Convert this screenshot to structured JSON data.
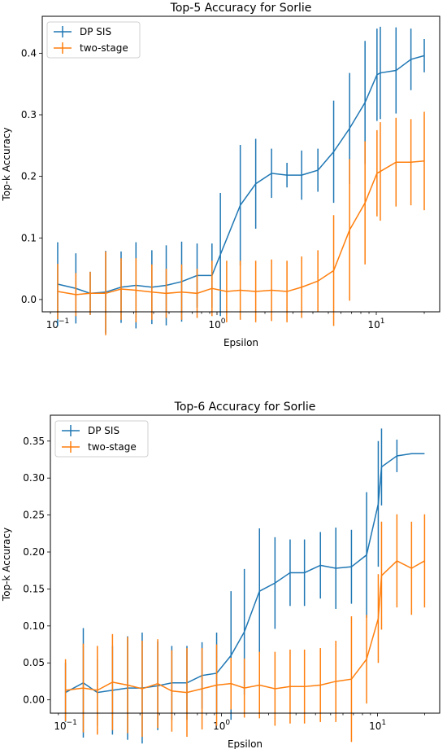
{
  "chart_data": [
    {
      "type": "line",
      "title": "Top-5 Accuracy for Sorlie",
      "xlabel": "Epsilon",
      "ylabel": "Top-k Accuracy",
      "xscale": "log",
      "xlim": [
        0.08,
        25
      ],
      "ylim": [
        -0.02,
        0.46
      ],
      "xticks": [
        0.1,
        1,
        10
      ],
      "xtick_labels": [
        {
          "base": "10",
          "exp": "−1"
        },
        {
          "base": "10",
          "exp": "0"
        },
        {
          "base": "10",
          "exp": "1"
        }
      ],
      "yticks": [
        0.0,
        0.1,
        0.2,
        0.3,
        0.4
      ],
      "ytick_labels": [
        "0.0",
        "0.1",
        "0.2",
        "0.3",
        "0.4"
      ],
      "legend_position": "top-left",
      "series": [
        {
          "name": "DP SIS",
          "color": "#1f77b4",
          "x": [
            0.1,
            0.13,
            0.16,
            0.2,
            0.25,
            0.31,
            0.39,
            0.48,
            0.6,
            0.75,
            0.93,
            1.05,
            1.4,
            1.75,
            2.2,
            2.75,
            3.4,
            4.3,
            5.4,
            6.8,
            8.5,
            10.1,
            10.6,
            13.3,
            16.5,
            20.0
          ],
          "y": [
            0.025,
            0.018,
            0.01,
            0.012,
            0.02,
            0.023,
            0.02,
            0.023,
            0.029,
            0.039,
            0.039,
            0.073,
            0.153,
            0.188,
            0.205,
            0.202,
            0.202,
            0.21,
            0.24,
            0.278,
            0.32,
            0.365,
            0.368,
            0.372,
            0.39,
            0.396
          ],
          "err": [
            0.068,
            0.057,
            0.035,
            0.067,
            0.058,
            0.07,
            0.06,
            0.065,
            0.065,
            0.052,
            0.052,
            0.1,
            0.098,
            0.073,
            0.04,
            0.02,
            0.04,
            0.035,
            0.083,
            0.09,
            0.1,
            0.075,
            0.075,
            0.07,
            0.05,
            0.027
          ]
        },
        {
          "name": "two-stage",
          "color": "#ff7f0e",
          "x": [
            0.1,
            0.13,
            0.16,
            0.2,
            0.25,
            0.31,
            0.39,
            0.48,
            0.6,
            0.75,
            0.93,
            1.15,
            1.4,
            1.75,
            2.2,
            2.75,
            3.4,
            4.3,
            5.4,
            6.8,
            8.5,
            10.1,
            10.6,
            13.3,
            16.5,
            20.0
          ],
          "y": [
            0.013,
            0.008,
            0.01,
            0.01,
            0.017,
            0.015,
            0.012,
            0.01,
            0.012,
            0.01,
            0.018,
            0.013,
            0.015,
            0.013,
            0.015,
            0.013,
            0.02,
            0.03,
            0.047,
            0.113,
            0.157,
            0.205,
            0.208,
            0.223,
            0.223,
            0.225
          ],
          "err": [
            0.045,
            0.035,
            0.035,
            0.068,
            0.05,
            0.052,
            0.045,
            0.04,
            0.045,
            0.04,
            0.045,
            0.05,
            0.048,
            0.05,
            0.05,
            0.05,
            0.05,
            0.05,
            0.09,
            0.115,
            0.1,
            0.07,
            0.08,
            0.072,
            0.07,
            0.08
          ]
        }
      ]
    },
    {
      "type": "line",
      "title": "Top-6 Accuracy for Sorlie",
      "xlabel": "Epsilon",
      "ylabel": "Top-k Accuracy",
      "xscale": "log",
      "xlim": [
        0.08,
        25
      ],
      "ylim": [
        -0.018,
        0.385
      ],
      "xticks": [
        0.1,
        1,
        10
      ],
      "xtick_labels": [
        {
          "base": "10",
          "exp": "−1"
        },
        {
          "base": "10",
          "exp": "0"
        },
        {
          "base": "10",
          "exp": "1"
        }
      ],
      "yticks": [
        0.0,
        0.05,
        0.1,
        0.15,
        0.2,
        0.25,
        0.3,
        0.35
      ],
      "ytick_labels": [
        "0.00",
        "0.05",
        "0.10",
        "0.15",
        "0.20",
        "0.25",
        "0.30",
        "0.35"
      ],
      "legend_position": "top-left",
      "series": [
        {
          "name": "DP SIS",
          "color": "#1f77b4",
          "x": [
            0.1,
            0.13,
            0.16,
            0.2,
            0.25,
            0.31,
            0.39,
            0.48,
            0.6,
            0.75,
            0.93,
            1.15,
            1.4,
            1.75,
            2.2,
            2.75,
            3.4,
            4.3,
            5.4,
            6.8,
            8.5,
            10.1,
            10.6,
            13.3,
            16.5,
            20.0
          ],
          "y": [
            0.01,
            0.023,
            0.01,
            0.013,
            0.016,
            0.016,
            0.019,
            0.023,
            0.023,
            0.033,
            0.036,
            0.06,
            0.092,
            0.147,
            0.158,
            0.172,
            0.172,
            0.182,
            0.178,
            0.18,
            0.196,
            0.265,
            0.315,
            0.33,
            0.333,
            0.333
          ],
          "err": [
            0.04,
            0.074,
            0.045,
            0.06,
            0.07,
            0.075,
            0.06,
            0.05,
            0.05,
            0.045,
            0.055,
            0.087,
            0.085,
            0.085,
            0.062,
            0.045,
            0.045,
            0.045,
            0.055,
            0.05,
            0.085,
            0.085,
            0.052,
            0.022,
            0.0,
            0.0
          ]
        },
        {
          "name": "two-stage",
          "color": "#ff7f0e",
          "x": [
            0.1,
            0.13,
            0.16,
            0.2,
            0.25,
            0.31,
            0.39,
            0.48,
            0.6,
            0.75,
            0.93,
            1.15,
            1.4,
            1.75,
            2.2,
            2.75,
            3.4,
            4.3,
            5.4,
            6.8,
            8.5,
            10.1,
            10.6,
            13.3,
            16.5,
            20.0
          ],
          "y": [
            0.013,
            0.016,
            0.013,
            0.024,
            0.02,
            0.015,
            0.022,
            0.012,
            0.01,
            0.015,
            0.02,
            0.022,
            0.016,
            0.02,
            0.015,
            0.018,
            0.018,
            0.02,
            0.025,
            0.028,
            0.055,
            0.11,
            0.168,
            0.188,
            0.178,
            0.188
          ],
          "err": [
            0.042,
            0.06,
            0.06,
            0.065,
            0.065,
            0.065,
            0.06,
            0.055,
            0.06,
            0.055,
            0.055,
            0.035,
            0.04,
            0.045,
            0.05,
            0.05,
            0.05,
            0.05,
            0.055,
            0.085,
            0.06,
            0.06,
            0.073,
            0.063,
            0.063,
            0.063
          ]
        }
      ]
    }
  ]
}
